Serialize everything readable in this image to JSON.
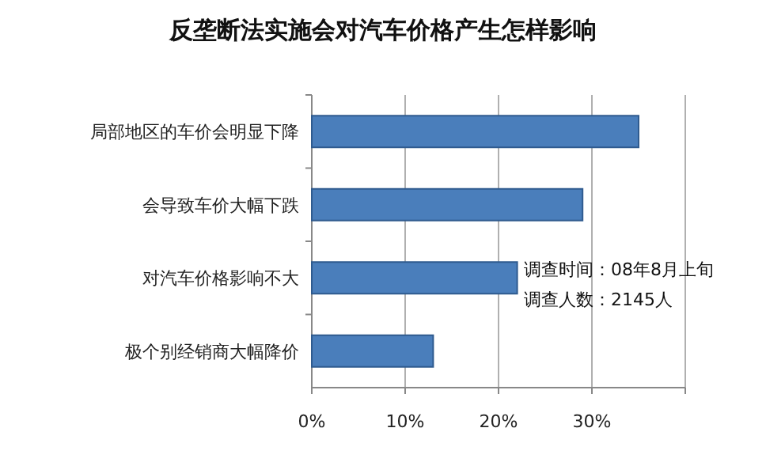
{
  "chart_data": {
    "type": "bar",
    "orientation": "horizontal",
    "title": "反垄断法实施会对汽车价格产生怎样影响",
    "categories": [
      "局部地区的车价会明显下降",
      "会导致车价大幅下跌",
      "对汽车价格影响不大",
      "极个别经销商大幅降价"
    ],
    "values": [
      35,
      29,
      22,
      13
    ],
    "color": "#4a7ebb",
    "xlim": [
      0,
      40
    ],
    "xticks": [
      {
        "value": 0,
        "label": "0%"
      },
      {
        "value": 10,
        "label": "10%"
      },
      {
        "value": 20,
        "label": "20%"
      },
      {
        "value": 30,
        "label": "30%"
      },
      {
        "value": 40,
        "label": null
      }
    ],
    "grid": "x",
    "annotations": [
      "调查时间：08年8月上旬",
      "调查人数：2145人"
    ]
  }
}
